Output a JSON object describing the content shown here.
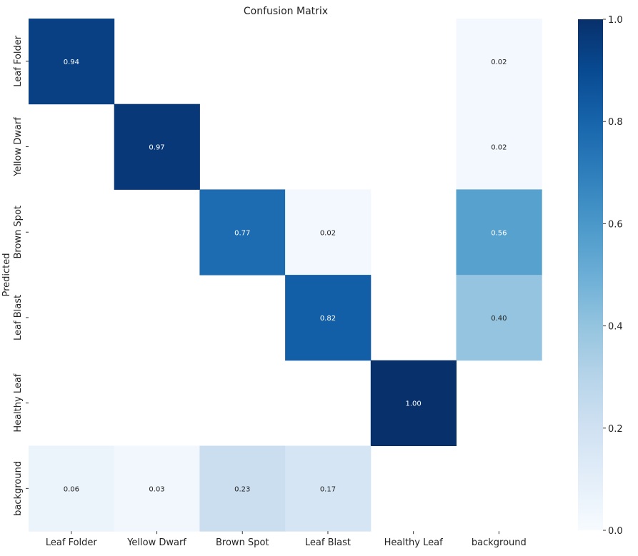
{
  "chart_data": {
    "type": "heatmap",
    "title": "Confusion Matrix",
    "ylabel": "Predicted",
    "xlabel": "",
    "x_categories": [
      "Leaf Folder",
      "Yellow Dwarf",
      "Brown Spot",
      "Leaf Blast",
      "Healthy Leaf",
      "background"
    ],
    "y_categories": [
      "Leaf Folder",
      "Yellow Dwarf",
      "Brown Spot",
      "Leaf Blast",
      "Healthy Leaf",
      "background"
    ],
    "values": [
      [
        0.94,
        null,
        null,
        null,
        null,
        0.02
      ],
      [
        null,
        0.97,
        null,
        null,
        null,
        0.02
      ],
      [
        null,
        null,
        0.77,
        0.02,
        null,
        0.56
      ],
      [
        null,
        null,
        null,
        0.82,
        null,
        0.4
      ],
      [
        null,
        null,
        null,
        null,
        1.0,
        null
      ],
      [
        0.06,
        0.03,
        0.23,
        0.17,
        null,
        null
      ]
    ],
    "annotations": [
      [
        "0.94",
        "",
        "",
        "",
        "",
        "0.02"
      ],
      [
        "",
        "0.97",
        "",
        "",
        "",
        "0.02"
      ],
      [
        "",
        "",
        "0.77",
        "0.02",
        "",
        "0.56"
      ],
      [
        "",
        "",
        "",
        "0.82",
        "",
        "0.40"
      ],
      [
        "",
        "",
        "",
        "",
        "1.00",
        ""
      ],
      [
        "0.06",
        "0.03",
        "0.23",
        "0.17",
        "",
        ""
      ]
    ],
    "colorbar": {
      "range": [
        0.0,
        1.0
      ],
      "ticks": [
        0.0,
        0.2,
        0.4,
        0.6,
        0.8,
        1.0
      ],
      "tick_labels": [
        "0.0",
        "0.2",
        "0.4",
        "0.6",
        "0.8",
        "1.0"
      ]
    },
    "colormap": "Blues",
    "colors": {
      "low": "#f7fbff",
      "high": "#08306b"
    }
  }
}
